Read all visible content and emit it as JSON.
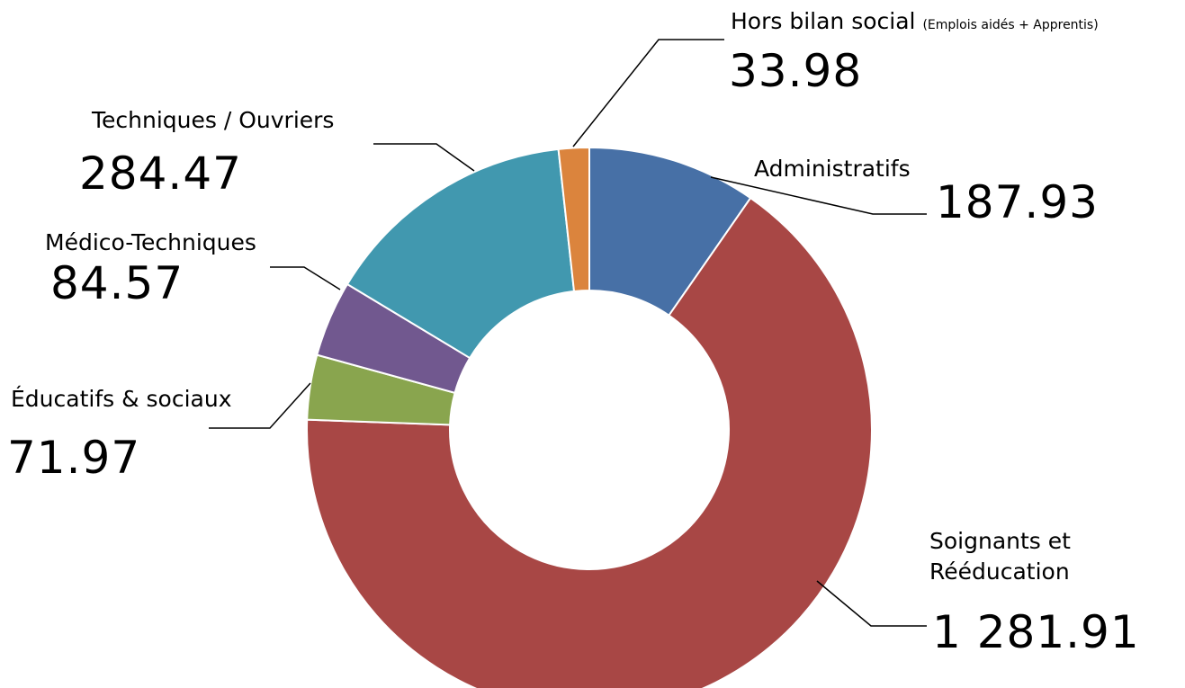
{
  "chart_data": {
    "type": "pie",
    "donut": true,
    "slices": [
      {
        "label": "Administratifs",
        "value": 187.93,
        "value_text": "187.93",
        "color": "#4770A6"
      },
      {
        "label": "Soignants et Rééducation",
        "label_lines": [
          "Soignants et",
          "Rééducation"
        ],
        "value": 1281.91,
        "value_text": "1 281.91",
        "color": "#A84745"
      },
      {
        "label": "Éducatifs & sociaux",
        "value": 71.97,
        "value_text": "71.97",
        "color": "#89A54E"
      },
      {
        "label": "Médico-Techniques",
        "value": 84.57,
        "value_text": "84.57",
        "color": "#71588F"
      },
      {
        "label": "Techniques / Ouvriers",
        "value": 284.47,
        "value_text": "284.47",
        "color": "#4198AF"
      },
      {
        "label": "Hors bilan social",
        "label_note": "(Emplois aidés + Apprentis)",
        "value": 33.98,
        "value_text": "33.98",
        "color": "#DB843D"
      }
    ]
  }
}
